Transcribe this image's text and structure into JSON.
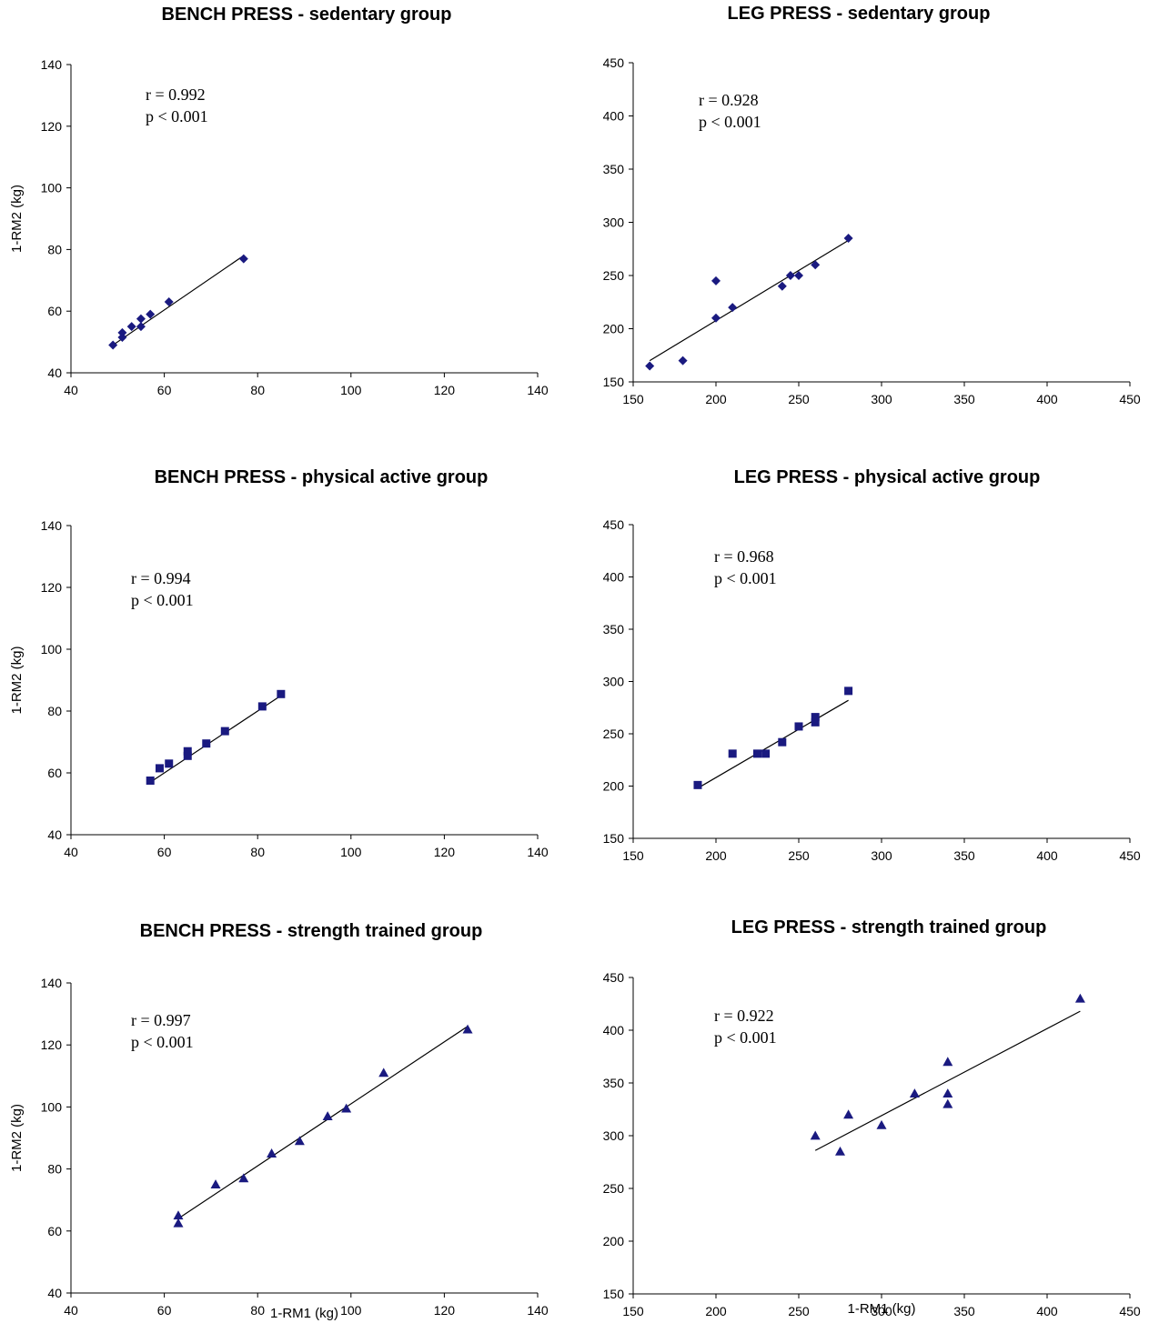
{
  "chart_data": [
    {
      "type": "scatter",
      "title": "BENCH PRESS - sedentary group",
      "xlabel": "",
      "ylabel": "1-RM2 (kg)",
      "xlim": [
        40,
        140
      ],
      "ylim": [
        40,
        140
      ],
      "xticks": [
        40,
        60,
        80,
        100,
        120,
        140
      ],
      "yticks": [
        40,
        60,
        80,
        100,
        120,
        140
      ],
      "marker": "diamond",
      "color": "#1a1a80",
      "points": [
        [
          49,
          49
        ],
        [
          51,
          51.5
        ],
        [
          51,
          53
        ],
        [
          53,
          55
        ],
        [
          55,
          55
        ],
        [
          55,
          57.5
        ],
        [
          57,
          59
        ],
        [
          61,
          63
        ],
        [
          77,
          77
        ]
      ],
      "fit": [
        [
          49,
          49
        ],
        [
          77,
          78
        ]
      ],
      "annotation": [
        "r = 0.992",
        "p < 0.001"
      ]
    },
    {
      "type": "scatter",
      "title": "LEG PRESS - sedentary group",
      "xlabel": "",
      "ylabel": "",
      "xlim": [
        150,
        450
      ],
      "ylim": [
        150,
        450
      ],
      "xticks": [
        150,
        200,
        250,
        300,
        350,
        400,
        450
      ],
      "yticks": [
        150,
        200,
        250,
        300,
        350,
        400,
        450
      ],
      "marker": "diamond",
      "color": "#1a1a80",
      "points": [
        [
          160,
          165
        ],
        [
          180,
          170
        ],
        [
          200,
          210
        ],
        [
          200,
          245
        ],
        [
          210,
          220
        ],
        [
          240,
          240
        ],
        [
          245,
          250
        ],
        [
          250,
          250
        ],
        [
          260,
          260
        ],
        [
          280,
          285
        ]
      ],
      "fit": [
        [
          160,
          170
        ],
        [
          280,
          283
        ]
      ],
      "annotation": [
        "r = 0.928",
        "p < 0.001"
      ]
    },
    {
      "type": "scatter",
      "title": "BENCH PRESS - physical active group",
      "xlabel": "",
      "ylabel": "1-RM2 (kg)",
      "xlim": [
        40,
        140
      ],
      "ylim": [
        40,
        140
      ],
      "xticks": [
        40,
        60,
        80,
        100,
        120,
        140
      ],
      "yticks": [
        40,
        60,
        80,
        100,
        120,
        140
      ],
      "marker": "square",
      "color": "#1a1a80",
      "points": [
        [
          57,
          57.5
        ],
        [
          59,
          61.5
        ],
        [
          61,
          63
        ],
        [
          65,
          65.5
        ],
        [
          65,
          67
        ],
        [
          69,
          69.5
        ],
        [
          73,
          73.5
        ],
        [
          81,
          81.5
        ],
        [
          85,
          85.5
        ]
      ],
      "fit": [
        [
          57,
          57
        ],
        [
          85,
          85
        ]
      ],
      "annotation": [
        "r = 0.994",
        "p < 0.001"
      ]
    },
    {
      "type": "scatter",
      "title": "LEG PRESS - physical active group",
      "xlabel": "",
      "ylabel": "",
      "xlim": [
        150,
        450
      ],
      "ylim": [
        150,
        450
      ],
      "xticks": [
        150,
        200,
        250,
        300,
        350,
        400,
        450
      ],
      "yticks": [
        150,
        200,
        250,
        300,
        350,
        400,
        450
      ],
      "marker": "square",
      "color": "#1a1a80",
      "points": [
        [
          189,
          201
        ],
        [
          210,
          231
        ],
        [
          225,
          231
        ],
        [
          230,
          231
        ],
        [
          240,
          242
        ],
        [
          250,
          257
        ],
        [
          260,
          261
        ],
        [
          260,
          266
        ],
        [
          280,
          291
        ]
      ],
      "fit": [
        [
          189,
          198
        ],
        [
          280,
          282
        ]
      ],
      "annotation": [
        "r = 0.968",
        "p < 0.001"
      ]
    },
    {
      "type": "scatter",
      "title": "BENCH PRESS - strength trained group",
      "xlabel": "1-RM1 (kg)",
      "ylabel": "1-RM2 (kg)",
      "xlim": [
        40,
        140
      ],
      "ylim": [
        40,
        140
      ],
      "xticks": [
        40,
        60,
        80,
        100,
        120,
        140
      ],
      "yticks": [
        40,
        60,
        80,
        100,
        120,
        140
      ],
      "marker": "triangle",
      "color": "#1a1a80",
      "points": [
        [
          63,
          62.5
        ],
        [
          63,
          65
        ],
        [
          71,
          75
        ],
        [
          77,
          77
        ],
        [
          83,
          85
        ],
        [
          89,
          89
        ],
        [
          95,
          97
        ],
        [
          99,
          99.5
        ],
        [
          107,
          111
        ],
        [
          125,
          125
        ]
      ],
      "fit": [
        [
          63,
          64
        ],
        [
          125,
          126
        ]
      ],
      "annotation": [
        "r = 0.997",
        "p < 0.001"
      ]
    },
    {
      "type": "scatter",
      "title": "LEG PRESS - strength trained group",
      "xlabel": "1-RM1 (kg)",
      "ylabel": "",
      "xlim": [
        150,
        450
      ],
      "ylim": [
        150,
        450
      ],
      "xticks": [
        150,
        200,
        250,
        300,
        350,
        400,
        450
      ],
      "yticks": [
        150,
        200,
        250,
        300,
        350,
        400,
        450
      ],
      "marker": "triangle",
      "color": "#1a1a80",
      "points": [
        [
          260,
          300
        ],
        [
          275,
          285
        ],
        [
          280,
          320
        ],
        [
          300,
          310
        ],
        [
          320,
          340
        ],
        [
          340,
          330
        ],
        [
          340,
          340
        ],
        [
          340,
          370
        ],
        [
          420,
          430
        ]
      ],
      "fit": [
        [
          260,
          286
        ],
        [
          420,
          418
        ]
      ],
      "annotation": [
        "r = 0.922",
        "p < 0.001"
      ]
    }
  ]
}
